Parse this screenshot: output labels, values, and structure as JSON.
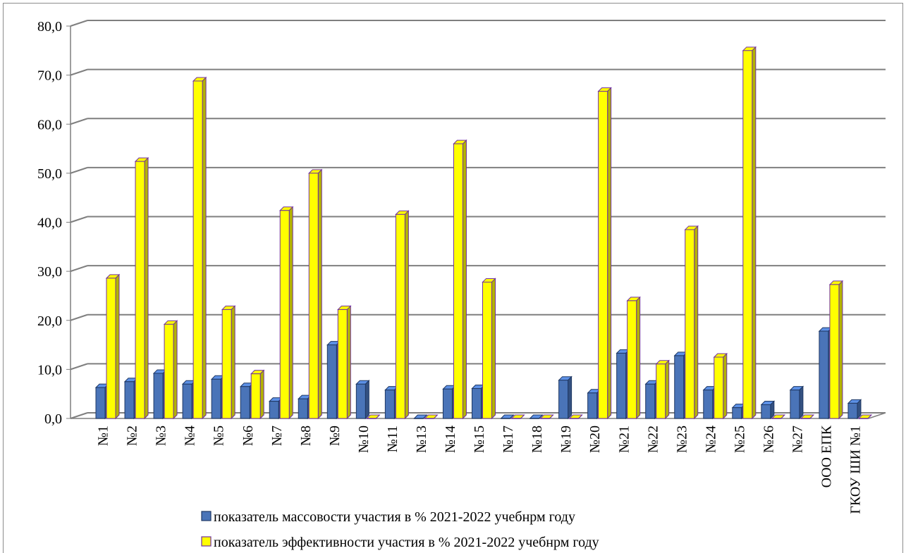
{
  "chart_data": {
    "type": "bar",
    "categories": [
      "№1",
      "№2",
      "№3",
      "№4",
      "№5",
      "№6",
      "№7",
      "№8",
      "№9",
      "№10",
      "№11",
      "№13",
      "№14",
      "№15",
      "№17",
      "№18",
      "№19",
      "№20",
      "№21",
      "№22",
      "№23",
      "№24",
      "№25",
      "№26",
      "№27",
      "ООО ЕПК",
      "ГКОУ ШИ №1"
    ],
    "series": [
      {
        "name": "показатель массовости участия в % 2021-2022 учебнрм году",
        "color": "#4a74b8",
        "values": [
          6.3,
          7.5,
          9.2,
          7.0,
          8.0,
          6.5,
          3.5,
          4.0,
          15.0,
          7.0,
          5.8,
          0.0,
          6.0,
          6.1,
          0.0,
          0.0,
          7.8,
          5.2,
          13.3,
          7.0,
          12.8,
          5.8,
          2.2,
          2.8,
          5.8,
          17.8,
          3.1
        ]
      },
      {
        "name": "показатель эффективности участия в % 2021-2022 учебнрм году",
        "color": "#ffff00",
        "values": [
          28.6,
          52.4,
          19.2,
          68.8,
          22.2,
          9.1,
          42.4,
          50.0,
          22.2,
          0.0,
          41.6,
          0.0,
          56.0,
          27.8,
          0.0,
          0.0,
          0.0,
          66.7,
          24.0,
          11.1,
          38.5,
          12.5,
          75.0,
          0.0,
          0.0,
          27.3,
          0.0
        ]
      }
    ],
    "ylim": [
      0,
      80
    ],
    "yticks": [
      "0,0",
      "10,0",
      "20,0",
      "30,0",
      "40,0",
      "50,0",
      "60,0",
      "70,0",
      "80,0"
    ],
    "grid": true,
    "legend_position": "bottom"
  }
}
